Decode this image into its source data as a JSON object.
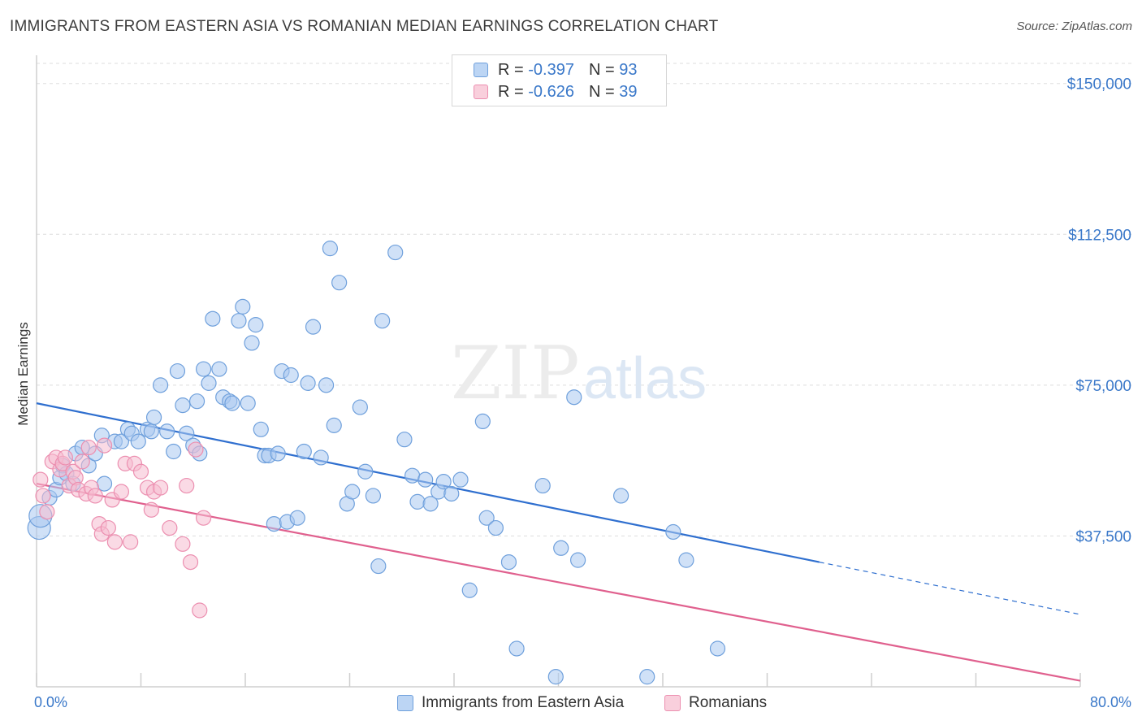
{
  "header": {
    "title": "IMMIGRANTS FROM EASTERN ASIA VS ROMANIAN MEDIAN EARNINGS CORRELATION CHART",
    "source": "Source: ZipAtlas.com"
  },
  "legend": {
    "series1": {
      "r_label": "R = ",
      "r_value": "-0.397",
      "n_label": "N = ",
      "n_value": "93"
    },
    "series2": {
      "r_label": "R = ",
      "r_value": "-0.626",
      "n_label": "N = ",
      "n_value": "39"
    }
  },
  "watermark": {
    "zip": "ZIP",
    "atlas": "atlas"
  },
  "colors": {
    "blue_fill": "#a9c8f0",
    "blue_stroke": "#6fa0dc",
    "blue_line": "#2f6fcf",
    "pink_fill": "#f6bcd0",
    "pink_stroke": "#ec8fb0",
    "pink_line": "#e0608e",
    "axis_text": "#3a78c9",
    "grid": "#dddddd"
  },
  "chart_data": {
    "type": "scatter",
    "title": "IMMIGRANTS FROM EASTERN ASIA VS ROMANIAN MEDIAN EARNINGS CORRELATION CHART",
    "xlabel": "",
    "ylabel": "Median Earnings",
    "xlim": [
      0,
      80
    ],
    "ylim": [
      0,
      155000
    ],
    "x_tick_labels": [
      "0.0%",
      "80.0%"
    ],
    "y_ticks": [
      37500,
      75000,
      112500,
      150000
    ],
    "y_tick_labels": [
      "$37,500",
      "$75,000",
      "$112,500",
      "$150,000"
    ],
    "grid": true,
    "legend_position": "top-center",
    "series": [
      {
        "name": "Immigrants from Eastern Asia",
        "color": "#a9c8f0",
        "trend": {
          "x0": 0,
          "y0": 70500,
          "x1": 60,
          "y1": 31000,
          "dashed_to_x": 80,
          "dashed_to_y": 18000
        },
        "points": [
          [
            0.2,
            39500
          ],
          [
            0.3,
            42500
          ],
          [
            1.0,
            47000
          ],
          [
            1.5,
            49000
          ],
          [
            1.8,
            52000
          ],
          [
            2.0,
            55000
          ],
          [
            2.3,
            53000
          ],
          [
            2.8,
            50500
          ],
          [
            3.0,
            58000
          ],
          [
            3.5,
            59500
          ],
          [
            4.0,
            55000
          ],
          [
            4.5,
            58000
          ],
          [
            5.0,
            62500
          ],
          [
            5.2,
            50500
          ],
          [
            6.0,
            61000
          ],
          [
            6.5,
            61000
          ],
          [
            7.0,
            64000
          ],
          [
            7.3,
            63000
          ],
          [
            7.8,
            61000
          ],
          [
            8.5,
            64000
          ],
          [
            8.8,
            63500
          ],
          [
            9.0,
            67000
          ],
          [
            9.5,
            75000
          ],
          [
            10.0,
            63500
          ],
          [
            10.5,
            58500
          ],
          [
            10.8,
            78500
          ],
          [
            11.2,
            70000
          ],
          [
            11.5,
            63000
          ],
          [
            12.0,
            60000
          ],
          [
            12.3,
            71000
          ],
          [
            12.5,
            58000
          ],
          [
            12.8,
            79000
          ],
          [
            13.2,
            75500
          ],
          [
            13.5,
            91500
          ],
          [
            14.0,
            79000
          ],
          [
            14.3,
            72000
          ],
          [
            14.8,
            71000
          ],
          [
            15.0,
            70500
          ],
          [
            15.5,
            91000
          ],
          [
            15.8,
            94500
          ],
          [
            16.2,
            70500
          ],
          [
            16.5,
            85500
          ],
          [
            16.8,
            90000
          ],
          [
            17.2,
            64000
          ],
          [
            17.5,
            57500
          ],
          [
            17.8,
            57500
          ],
          [
            18.2,
            40500
          ],
          [
            18.5,
            58000
          ],
          [
            18.8,
            78500
          ],
          [
            19.2,
            41000
          ],
          [
            19.5,
            77500
          ],
          [
            20.0,
            42000
          ],
          [
            20.5,
            58500
          ],
          [
            20.8,
            75500
          ],
          [
            21.2,
            89500
          ],
          [
            21.8,
            57000
          ],
          [
            22.2,
            75000
          ],
          [
            22.5,
            109000
          ],
          [
            22.8,
            65000
          ],
          [
            23.2,
            100500
          ],
          [
            23.8,
            45500
          ],
          [
            24.2,
            48500
          ],
          [
            24.8,
            69500
          ],
          [
            25.2,
            53500
          ],
          [
            25.8,
            47500
          ],
          [
            26.2,
            30000
          ],
          [
            26.5,
            91000
          ],
          [
            27.5,
            108000
          ],
          [
            28.2,
            61500
          ],
          [
            28.8,
            52500
          ],
          [
            29.2,
            46000
          ],
          [
            29.8,
            51500
          ],
          [
            30.2,
            45500
          ],
          [
            30.8,
            48500
          ],
          [
            31.2,
            51000
          ],
          [
            31.8,
            48000
          ],
          [
            32.5,
            51500
          ],
          [
            33.2,
            24000
          ],
          [
            34.2,
            66000
          ],
          [
            34.5,
            42000
          ],
          [
            35.2,
            39500
          ],
          [
            36.2,
            31000
          ],
          [
            36.8,
            9500
          ],
          [
            38.8,
            50000
          ],
          [
            39.8,
            2500
          ],
          [
            40.2,
            34500
          ],
          [
            41.2,
            72000
          ],
          [
            41.5,
            31500
          ],
          [
            44.8,
            47500
          ],
          [
            46.8,
            2500
          ],
          [
            48.8,
            38500
          ],
          [
            49.8,
            31500
          ],
          [
            52.2,
            9500
          ]
        ]
      },
      {
        "name": "Romanians",
        "color": "#f6bcd0",
        "trend": {
          "x0": 0,
          "y0": 50500,
          "x1": 80,
          "y1": 1500
        },
        "points": [
          [
            0.3,
            51500
          ],
          [
            0.5,
            47500
          ],
          [
            0.8,
            43500
          ],
          [
            1.2,
            56000
          ],
          [
            1.5,
            57000
          ],
          [
            1.8,
            54000
          ],
          [
            2.0,
            55500
          ],
          [
            2.2,
            57000
          ],
          [
            2.5,
            50000
          ],
          [
            2.8,
            53500
          ],
          [
            3.0,
            52000
          ],
          [
            3.2,
            49000
          ],
          [
            3.5,
            56000
          ],
          [
            3.8,
            48000
          ],
          [
            4.0,
            59500
          ],
          [
            4.2,
            49500
          ],
          [
            4.5,
            47500
          ],
          [
            4.8,
            40500
          ],
          [
            5.0,
            38000
          ],
          [
            5.2,
            60000
          ],
          [
            5.5,
            39500
          ],
          [
            5.8,
            46500
          ],
          [
            6.0,
            36000
          ],
          [
            6.5,
            48500
          ],
          [
            6.8,
            55500
          ],
          [
            7.2,
            36000
          ],
          [
            7.5,
            55500
          ],
          [
            8.0,
            53500
          ],
          [
            8.5,
            49500
          ],
          [
            8.8,
            44000
          ],
          [
            9.0,
            48500
          ],
          [
            9.5,
            49500
          ],
          [
            10.2,
            39500
          ],
          [
            11.2,
            35500
          ],
          [
            11.5,
            50000
          ],
          [
            11.8,
            31000
          ],
          [
            12.2,
            59000
          ],
          [
            12.5,
            19000
          ],
          [
            12.8,
            42000
          ]
        ]
      }
    ]
  },
  "bottom_legend": {
    "s1": "Immigrants from Eastern Asia",
    "s2": "Romanians"
  }
}
